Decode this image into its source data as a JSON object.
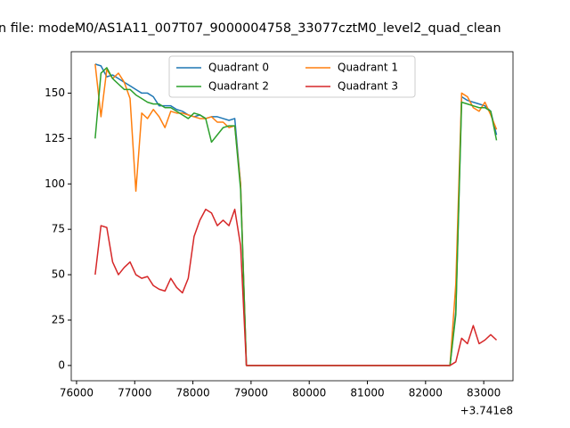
{
  "chart_data": {
    "type": "line",
    "title": "n file: modeM0/AS1A11_007T07_9000004758_33077cztM0_level2_quad_clean",
    "x_offset_label": "+3.741e8",
    "x": [
      76320,
      76420,
      76520,
      76620,
      76720,
      76820,
      76920,
      77020,
      77120,
      77220,
      77320,
      77420,
      77520,
      77620,
      77720,
      77820,
      77920,
      78020,
      78120,
      78220,
      78320,
      78420,
      78520,
      78620,
      78720,
      78820,
      78920,
      82420,
      82520,
      82620,
      82720,
      82820,
      82920,
      83020,
      83120,
      83220
    ],
    "series": [
      {
        "name": "Quadrant 0",
        "color": "#1f77b4",
        "values": [
          166,
          165,
          159,
          160,
          158,
          156,
          154,
          152,
          150,
          150,
          148,
          143,
          143,
          143,
          141,
          140,
          138,
          137,
          138,
          136,
          137,
          137,
          136,
          135,
          136,
          100,
          0,
          0,
          30,
          148,
          146,
          145,
          144,
          143,
          140,
          127
        ]
      },
      {
        "name": "Quadrant 1",
        "color": "#ff7f0e",
        "values": [
          166,
          137,
          163,
          158,
          161,
          156,
          147,
          96,
          139,
          136,
          141,
          137,
          131,
          140,
          139,
          139,
          138,
          137,
          136,
          136,
          137,
          134,
          134,
          131,
          132,
          100,
          0,
          0,
          45,
          150,
          148,
          142,
          140,
          145,
          138,
          130
        ]
      },
      {
        "name": "Quadrant 2",
        "color": "#2ca02c",
        "values": [
          125,
          161,
          164,
          158,
          155,
          152,
          152,
          149,
          147,
          145,
          144,
          144,
          142,
          142,
          140,
          138,
          136,
          139,
          138,
          136,
          123,
          127,
          131,
          132,
          132,
          97,
          0,
          0,
          28,
          145,
          144,
          143,
          142,
          142,
          140,
          124
        ]
      },
      {
        "name": "Quadrant 3",
        "color": "#d62728",
        "values": [
          50,
          77,
          76,
          57,
          50,
          54,
          57,
          50,
          48,
          49,
          44,
          42,
          41,
          48,
          43,
          40,
          48,
          71,
          80,
          86,
          84,
          77,
          80,
          77,
          86,
          66,
          0,
          0,
          2,
          15,
          12,
          22,
          12,
          14,
          17,
          14
        ]
      }
    ],
    "xlim": [
      75909,
      83503
    ],
    "ylim": [
      -8.4,
      172.8
    ],
    "xticks": [
      76000,
      77000,
      78000,
      79000,
      80000,
      81000,
      82000,
      83000
    ],
    "yticks": [
      0,
      25,
      50,
      75,
      100,
      125,
      150
    ],
    "legend": "upper center"
  }
}
